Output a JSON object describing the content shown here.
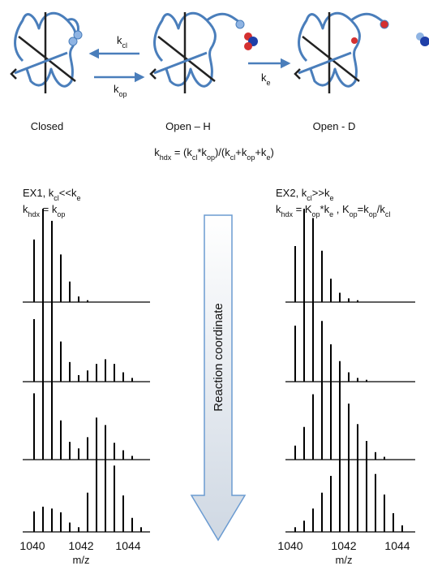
{
  "states": {
    "closed": "Closed",
    "open_h": "Open – H",
    "open_d": "Open - D"
  },
  "rates": {
    "k_cl": [
      "k",
      "cl"
    ],
    "k_op": [
      "k",
      "op"
    ],
    "k_e": [
      "k",
      "e"
    ]
  },
  "formula": [
    "k",
    "hdx",
    " = (k",
    "cl",
    "*k",
    "op",
    ")/(k",
    "cl",
    "+k",
    "op",
    "+k",
    "e",
    ")"
  ],
  "ex1": {
    "line1": [
      "EX1, k",
      "cl",
      "<<k",
      "e"
    ],
    "line2": [
      "k",
      "hdx",
      " = k",
      "op"
    ]
  },
  "ex2": {
    "line1": [
      "EX2, k",
      "cl",
      ">>k",
      "e"
    ],
    "line2": [
      "k",
      "hdx",
      " = K",
      "op",
      "*k",
      "e",
      " , K",
      "op",
      "=k",
      "op",
      "/k",
      "cl"
    ]
  },
  "arrow_label": "Reaction coordinate",
  "axis": {
    "ticks": [
      "1040",
      "1042",
      "1044"
    ],
    "label": "m/z"
  },
  "spectra": {
    "left": [
      [
        67,
        100,
        87,
        51,
        22,
        6,
        2
      ],
      [
        67,
        100,
        85,
        43,
        21,
        7,
        12,
        19,
        24,
        19,
        10,
        4
      ],
      [
        71,
        100,
        84,
        42,
        19,
        12,
        24,
        45,
        37,
        18,
        10,
        4
      ],
      [
        22,
        27,
        25,
        21,
        10,
        5,
        42,
        90,
        100,
        71,
        39,
        15,
        5
      ]
    ],
    "right": [
      [
        60,
        100,
        90,
        55,
        25,
        10,
        4,
        2
      ],
      [
        60,
        100,
        92,
        65,
        40,
        22,
        10,
        4,
        2
      ],
      [
        15,
        35,
        70,
        92,
        100,
        85,
        60,
        38,
        20,
        8,
        3
      ],
      [
        5,
        12,
        25,
        42,
        60,
        78,
        90,
        100,
        85,
        62,
        40,
        20,
        7
      ]
    ]
  }
}
